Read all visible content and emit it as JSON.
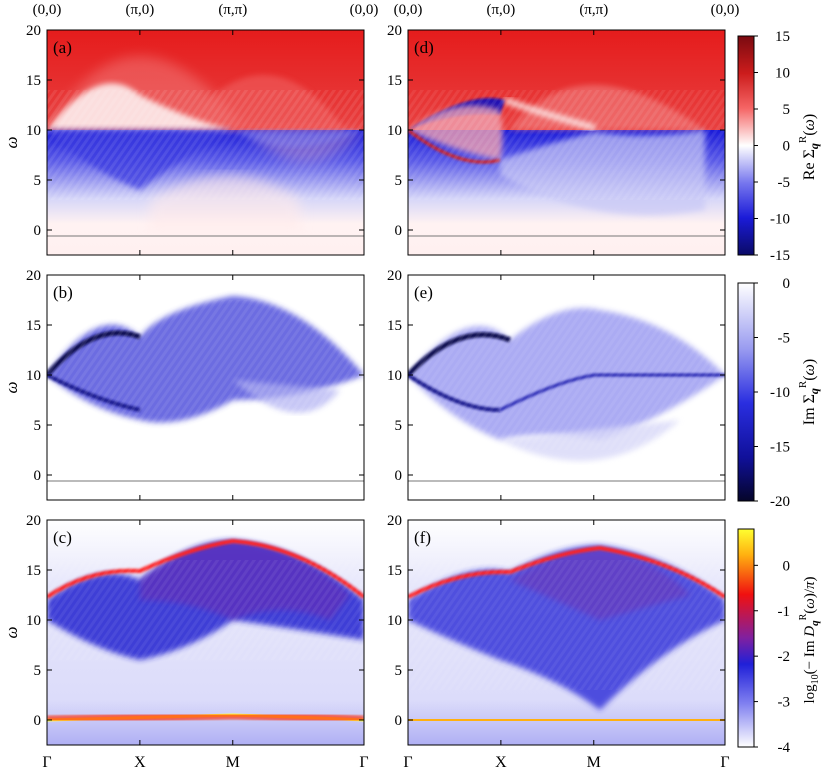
{
  "chart_data": [
    {
      "type": "heatmap",
      "panel": "(a)",
      "row": "Re",
      "xticks": [
        "Γ",
        "X",
        "M",
        "Γ"
      ],
      "toplabels": [
        "(0,0)",
        "(π,0)",
        "(π,π)",
        "(0,0)"
      ],
      "ylabel": "ω",
      "yticks": [
        0,
        5,
        10,
        15,
        20
      ],
      "ylim": [
        -2.5,
        20
      ]
    },
    {
      "type": "heatmap",
      "panel": "(d)",
      "row": "Re",
      "xticks": [
        "Γ",
        "X",
        "M",
        "Γ"
      ],
      "toplabels": [
        "(0,0)",
        "(π,0)",
        "(π,π)",
        "(0,0)"
      ],
      "ylabel": "",
      "yticks": [
        0,
        5,
        10,
        15,
        20
      ],
      "ylim": [
        -2.5,
        20
      ]
    },
    {
      "type": "heatmap",
      "panel": "(b)",
      "row": "Im",
      "xticks": [
        "Γ",
        "X",
        "M",
        "Γ"
      ],
      "ylabel": "ω",
      "yticks": [
        0,
        5,
        10,
        15,
        20
      ],
      "ylim": [
        -2.5,
        20
      ]
    },
    {
      "type": "heatmap",
      "panel": "(e)",
      "row": "Im",
      "xticks": [
        "Γ",
        "X",
        "M",
        "Γ"
      ],
      "ylabel": "",
      "yticks": [
        0,
        5,
        10,
        15,
        20
      ],
      "ylim": [
        -2.5,
        20
      ]
    },
    {
      "type": "heatmap",
      "panel": "(c)",
      "row": "D",
      "xticks": [
        "Γ",
        "X",
        "M",
        "Γ"
      ],
      "ylabel": "ω",
      "yticks": [
        0,
        5,
        10,
        15,
        20
      ],
      "ylim": [
        -2.5,
        20
      ]
    },
    {
      "type": "heatmap",
      "panel": "(f)",
      "row": "D",
      "xticks": [
        "Γ",
        "X",
        "M",
        "Γ"
      ],
      "ylabel": "",
      "yticks": [
        0,
        5,
        10,
        15,
        20
      ],
      "ylim": [
        -2.5,
        20
      ]
    }
  ],
  "colorbars": [
    {
      "row": "Re",
      "label": "Re Σ_q^R(ω)",
      "ticks": [
        15,
        10,
        5,
        0,
        -5,
        -10,
        -15
      ],
      "range": [
        -15,
        15
      ]
    },
    {
      "row": "Im",
      "label": "Im Σ_q^R(ω)",
      "ticks": [
        0,
        -5,
        -10,
        -15,
        -20
      ],
      "range": [
        -20,
        0
      ]
    },
    {
      "row": "D",
      "label": "log10(− Im D_q^R(ω)/π)",
      "ticks": [
        0,
        -1,
        -2,
        -3,
        -4
      ],
      "range": [
        -4,
        0.8
      ]
    }
  ],
  "labels": {
    "x_ticks": [
      "Γ",
      "X",
      "M",
      "Γ"
    ],
    "top_ticks": [
      "(0,0)",
      "(π,0)",
      "(π,π)",
      "(0,0)"
    ],
    "y_axis": "ω",
    "panel_a": "(a)",
    "panel_b": "(b)",
    "panel_c": "(c)",
    "panel_d": "(d)",
    "panel_e": "(e)",
    "panel_f": "(f)"
  }
}
